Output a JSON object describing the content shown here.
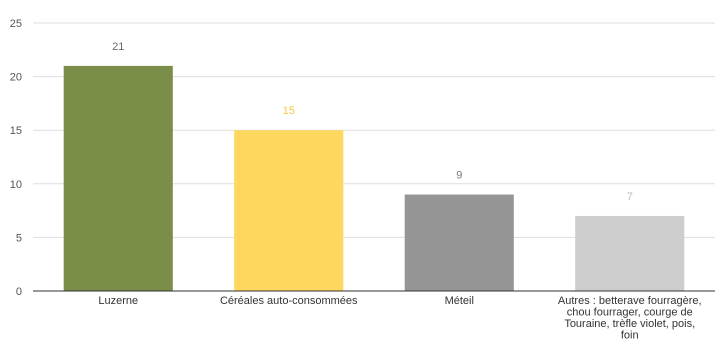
{
  "chart_data": {
    "type": "bar",
    "categories": [
      [
        "Luzerne"
      ],
      [
        "Céréales auto-consommées"
      ],
      [
        "Méteil"
      ],
      [
        "Autres : betterave fourragère,",
        "chou fourrager, courge de",
        "Touraine, trèfle violet, pois,",
        "foin"
      ]
    ],
    "values": [
      21,
      15,
      9,
      7
    ],
    "data_labels": [
      "21",
      "15",
      "9",
      "7"
    ],
    "colors": [
      "#7a8e4a",
      "#fdd75e",
      "#959595",
      "#cdcdcd"
    ],
    "label_colors": [
      "#6b6b6b",
      "#f5c83e",
      "#777777",
      "#bdbdbd"
    ],
    "ylim": [
      0,
      25
    ],
    "yticks": [
      0,
      5,
      10,
      15,
      20,
      25
    ],
    "grid": true,
    "title": "",
    "xlabel": "",
    "ylabel": ""
  }
}
